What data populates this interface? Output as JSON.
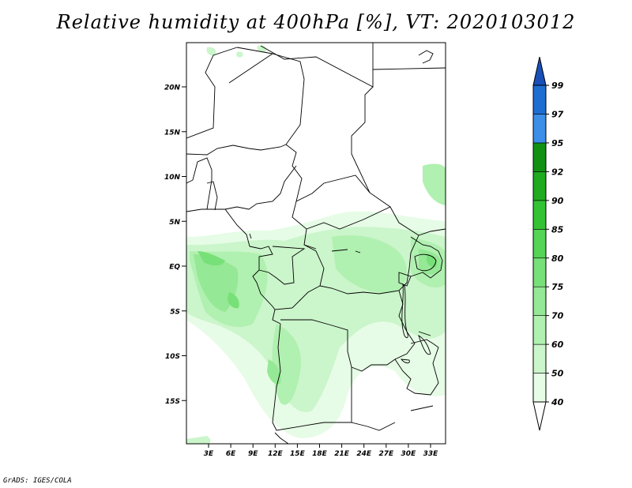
{
  "title": "Relative humidity at 400hPa [%], VT: 2020103012",
  "footer": "GrADS: IGES/COLA",
  "map": {
    "lat_ticks": [
      "20N",
      "15N",
      "10N",
      "5N",
      "EQ",
      "5S",
      "10S",
      "15S"
    ],
    "lon_ticks": [
      "3E",
      "6E",
      "9E",
      "12E",
      "15E",
      "18E",
      "21E",
      "24E",
      "27E",
      "30E",
      "33E"
    ]
  },
  "colorbar": {
    "levels": [
      "40",
      "50",
      "60",
      "70",
      "75",
      "80",
      "85",
      "90",
      "92",
      "95",
      "97",
      "99"
    ],
    "colors": [
      "#ffffff",
      "#e6fce6",
      "#cbf5cb",
      "#b0f0b0",
      "#95e895",
      "#78e078",
      "#55d455",
      "#33c233",
      "#1faa1f",
      "#129012",
      "#3c8ee6",
      "#1e6ed2",
      "#1850b8"
    ]
  }
}
